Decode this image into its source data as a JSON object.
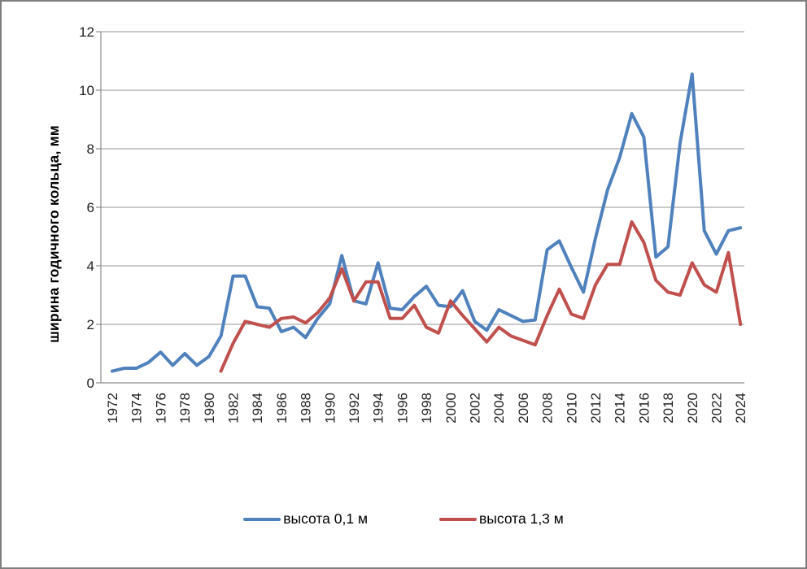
{
  "frame": {
    "background": "#ffffff",
    "border_color": "#7f7f7f",
    "gridline_color": "#969696",
    "axis_color": "#8c8c8c"
  },
  "axes": {
    "y_title": "ширина годичного кольца, мм"
  },
  "legend": {
    "items": [
      {
        "label": "высота 0,1 м",
        "color": "#4F81BD"
      },
      {
        "label": "высота 1,3 м",
        "color": "#C0504D"
      }
    ]
  },
  "chart_data": {
    "type": "line",
    "title": "",
    "xlabel": "",
    "ylabel": "ширина годичного кольца, мм",
    "ylim": [
      0,
      12
    ],
    "y_ticks": [
      0,
      2,
      4,
      6,
      8,
      10,
      12
    ],
    "grid": true,
    "legend_position": "bottom",
    "x": [
      1972,
      1973,
      1974,
      1975,
      1976,
      1977,
      1978,
      1979,
      1980,
      1981,
      1982,
      1983,
      1984,
      1985,
      1986,
      1987,
      1988,
      1989,
      1990,
      1991,
      1992,
      1993,
      1994,
      1995,
      1996,
      1997,
      1998,
      1999,
      2000,
      2001,
      2002,
      2003,
      2004,
      2005,
      2006,
      2007,
      2008,
      2009,
      2010,
      2011,
      2012,
      2013,
      2014,
      2015,
      2016,
      2017,
      2018,
      2019,
      2020,
      2021,
      2022,
      2023,
      2024
    ],
    "x_tick_labels": [
      "1972",
      "1974",
      "1976",
      "1978",
      "1980",
      "1982",
      "1984",
      "1986",
      "1988",
      "1990",
      "1992",
      "1994",
      "1996",
      "1998",
      "2000",
      "2002",
      "2004",
      "2006",
      "2008",
      "2010",
      "2012",
      "2014",
      "2016",
      "2018",
      "2020",
      "2022",
      "2024"
    ],
    "series": [
      {
        "name": "высота 0,1 м",
        "color": "#4F81BD",
        "values": [
          0.4,
          0.5,
          0.5,
          0.7,
          1.05,
          0.6,
          1.0,
          0.6,
          0.9,
          1.6,
          3.65,
          3.65,
          2.6,
          2.55,
          1.75,
          1.9,
          1.55,
          2.2,
          2.7,
          4.35,
          2.8,
          2.7,
          4.1,
          2.55,
          2.5,
          2.95,
          3.3,
          2.65,
          2.6,
          3.15,
          2.1,
          1.8,
          2.5,
          2.3,
          2.1,
          2.15,
          4.55,
          4.85,
          3.95,
          3.1,
          4.95,
          6.6,
          7.7,
          9.2,
          8.4,
          4.3,
          4.65,
          8.2,
          10.55,
          5.2,
          4.4,
          5.2,
          5.3
        ]
      },
      {
        "name": "высота 1,3 м",
        "color": "#C0504D",
        "values": [
          null,
          null,
          null,
          null,
          null,
          null,
          null,
          null,
          null,
          0.4,
          1.35,
          2.1,
          2.0,
          1.9,
          2.2,
          2.25,
          2.05,
          2.4,
          2.9,
          3.9,
          2.8,
          3.45,
          3.45,
          2.2,
          2.2,
          2.65,
          1.9,
          1.7,
          2.8,
          2.3,
          1.85,
          1.4,
          1.9,
          1.6,
          1.45,
          1.3,
          2.3,
          3.2,
          2.35,
          2.2,
          3.35,
          4.05,
          4.05,
          5.5,
          4.8,
          3.5,
          3.1,
          3.0,
          4.1,
          3.35,
          3.1,
          4.45,
          2.0
        ]
      }
    ]
  }
}
